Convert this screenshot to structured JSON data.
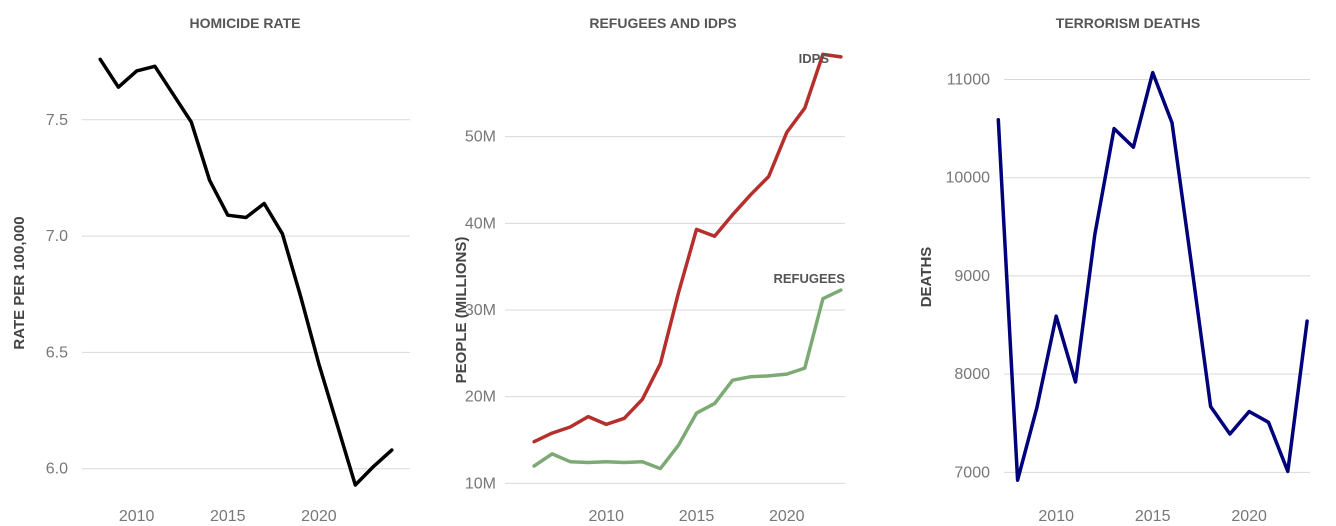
{
  "chart_data": [
    {
      "type": "line",
      "title": "HOMICIDE RATE",
      "xlabel": "",
      "ylabel": "RATE PER 100,000",
      "xlim": [
        2007,
        2025
      ],
      "ylim": [
        5.9,
        7.8
      ],
      "yticks": [
        6.0,
        6.5,
        7.0,
        7.5
      ],
      "ytick_labels": [
        "6.0",
        "6.5",
        "7.0",
        "7.5"
      ],
      "xticks": [
        2010,
        2015,
        2020
      ],
      "grid": true,
      "series": [
        {
          "name": "",
          "color": "#000000",
          "x": [
            2008,
            2009,
            2010,
            2011,
            2012,
            2013,
            2014,
            2015,
            2016,
            2017,
            2018,
            2019,
            2020,
            2021,
            2022,
            2023,
            2024
          ],
          "y": [
            7.76,
            7.64,
            7.71,
            7.73,
            7.61,
            7.49,
            7.24,
            7.09,
            7.08,
            7.14,
            7.01,
            6.74,
            6.45,
            6.19,
            5.93,
            6.01,
            6.08
          ]
        }
      ]
    },
    {
      "type": "line",
      "title": "REFUGEES AND IDPS",
      "xlabel": "",
      "ylabel": "PEOPLE (MILLIONS)",
      "xlim": [
        2005,
        2024.5
      ],
      "ylim": [
        9,
        60
      ],
      "yticks": [
        10,
        20,
        30,
        40,
        50
      ],
      "ytick_labels": [
        "10M",
        "20M",
        "30M",
        "40M",
        "50M"
      ],
      "xticks": [
        2010,
        2015,
        2020
      ],
      "grid": true,
      "series": [
        {
          "name": "IDPS",
          "color": "#b5302c",
          "x": [
            2006,
            2007,
            2008,
            2009,
            2010,
            2011,
            2012,
            2013,
            2014,
            2015,
            2016,
            2017,
            2018,
            2019,
            2020,
            2021,
            2022,
            2023
          ],
          "y": [
            14.8,
            15.8,
            16.5,
            17.7,
            16.8,
            17.5,
            19.7,
            23.8,
            32.0,
            39.3,
            38.5,
            41.0,
            43.3,
            45.4,
            50.5,
            53.3,
            59.5,
            59.2
          ]
        },
        {
          "name": "REFUGEES",
          "color": "#7daa74",
          "x": [
            2006,
            2007,
            2008,
            2009,
            2010,
            2011,
            2012,
            2013,
            2014,
            2015,
            2016,
            2017,
            2018,
            2019,
            2020,
            2021,
            2022,
            2023
          ],
          "y": [
            12.0,
            13.4,
            12.5,
            12.4,
            12.5,
            12.4,
            12.5,
            11.7,
            14.4,
            18.1,
            19.2,
            21.9,
            22.3,
            22.4,
            22.6,
            23.3,
            31.3,
            32.3
          ]
        }
      ]
    },
    {
      "type": "line",
      "title": "TERRORISM DEATHS",
      "xlabel": "",
      "ylabel": "DEATHS",
      "xlim": [
        2006,
        2024.5
      ],
      "ylim": [
        6800,
        11300
      ],
      "yticks": [
        7000,
        8000,
        9000,
        10000,
        11000
      ],
      "ytick_labels": [
        "7000",
        "8000",
        "9000",
        "10000",
        "11000"
      ],
      "xticks": [
        2010,
        2015,
        2020
      ],
      "grid": true,
      "series": [
        {
          "name": "",
          "color": "#00007a",
          "x": [
            2007,
            2008,
            2009,
            2010,
            2011,
            2012,
            2013,
            2014,
            2015,
            2016,
            2017,
            2018,
            2019,
            2020,
            2021,
            2022,
            2023
          ],
          "y": [
            10590,
            6920,
            7660,
            8590,
            7920,
            9420,
            10500,
            10310,
            11070,
            10560,
            9130,
            7670,
            7390,
            7620,
            7510,
            7010,
            8540
          ]
        }
      ]
    }
  ]
}
